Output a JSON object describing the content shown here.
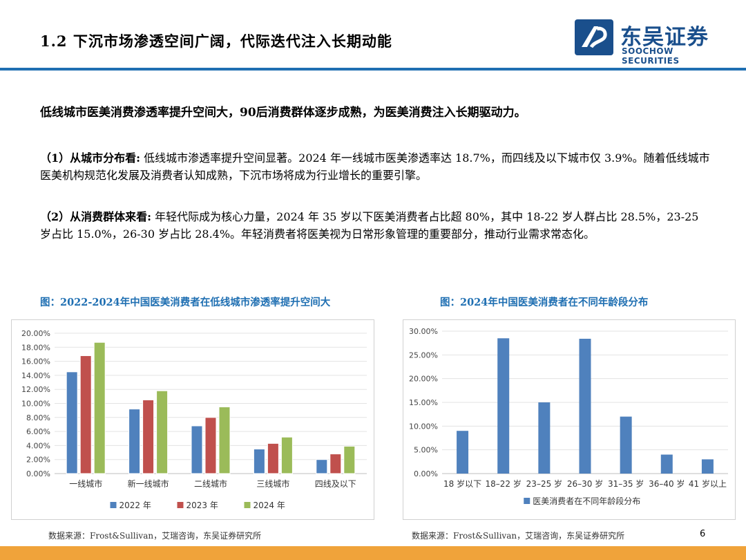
{
  "header": {
    "title": "1.2 下沉市场渗透空间广阔，代际迭代注入长期动能",
    "logo_cn": "东吴证券",
    "logo_en": "SOOCHOW SECURITIES"
  },
  "lead": "低线城市医美消费渗透率提升空间大，90后消费群体逐步成熟，为医美消费注入长期驱动力。",
  "para1": {
    "label": "（1）从城市分布看:",
    "text": " 低线城市渗透率提升空间显著。2024 年一线城市医美渗透率达 18.7%，而四线及以下城市仅 3.9%。随着低线城市医美机构规范化发展及消费者认知成熟，下沉市场将成为行业增长的重要引擎。"
  },
  "para2": {
    "label": "（2）从消费群体来看:",
    "text": " 年轻代际成为核心力量，2024 年 35 岁以下医美消费者占比超 80%，其中 18-22 岁人群占比 28.5%，23-25 岁占比 15.0%，26-30 岁占比 28.4%。年轻消费者将医美视为日常形象管理的重要部分，推动行业需求常态化。"
  },
  "figures": {
    "left_title": "图：2022-2024年中国医美消费者在低线城市渗透率提升空间大",
    "right_title": "图：2024年中国医美消费者在不同年龄段分布",
    "left_source": "数据来源：Frost&Sullivan，艾瑞咨询，东吴证券研究所",
    "right_source": "数据来源：Frost&Sullivan，艾瑞咨询，东吴证券研究所"
  },
  "page_number": "6",
  "colors": {
    "s2022": "#4f81bd",
    "s2023": "#c0504d",
    "s2024": "#9bbb59",
    "single": "#4f81bd",
    "accent": "#1f6fb2",
    "footer": "#f0a33a"
  },
  "chart_data": [
    {
      "type": "bar",
      "categories": [
        "一线城市",
        "新一线城市",
        "二线城市",
        "三线城市",
        "四线及以下"
      ],
      "series": [
        {
          "name": "2022 年",
          "values": [
            14.5,
            9.2,
            6.8,
            3.5,
            2.0
          ]
        },
        {
          "name": "2023 年",
          "values": [
            16.8,
            10.5,
            8.0,
            4.3,
            2.8
          ]
        },
        {
          "name": "2024 年",
          "values": [
            18.7,
            11.8,
            9.5,
            5.2,
            3.9
          ]
        }
      ],
      "y_ticks": [
        "0.00%",
        "2.00%",
        "4.00%",
        "6.00%",
        "8.00%",
        "10.00%",
        "12.00%",
        "14.00%",
        "16.00%",
        "18.00%",
        "20.00%"
      ],
      "ylim": [
        0,
        20
      ],
      "grid": true,
      "legend_position": "bottom"
    },
    {
      "type": "bar",
      "categories": [
        "18 岁以下",
        "18–22 岁",
        "23–25 岁",
        "26–30 岁",
        "31–35 岁",
        "36–40 岁",
        "41 岁以上"
      ],
      "series": [
        {
          "name": "医美消费者在不同年龄段分布",
          "values": [
            9.0,
            28.5,
            15.0,
            28.4,
            12.0,
            4.0,
            3.0
          ]
        }
      ],
      "y_ticks": [
        "0.00%",
        "5.00%",
        "10.00%",
        "15.00%",
        "20.00%",
        "25.00%",
        "30.00%"
      ],
      "ylim": [
        0,
        30
      ],
      "grid": true,
      "legend_position": "bottom"
    }
  ]
}
